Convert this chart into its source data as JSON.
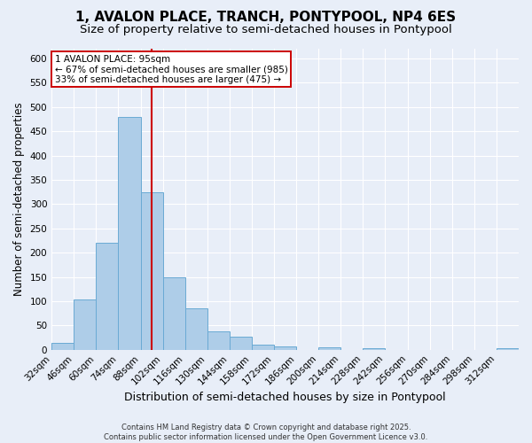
{
  "title1": "1, AVALON PLACE, TRANCH, PONTYPOOL, NP4 6ES",
  "title2": "Size of property relative to semi-detached houses in Pontypool",
  "xlabel": "Distribution of semi-detached houses by size in Pontypool",
  "ylabel": "Number of semi-detached properties",
  "footnote1": "Contains HM Land Registry data © Crown copyright and database right 2025.",
  "footnote2": "Contains public sector information licensed under the Open Government Licence v3.0.",
  "bin_labels": [
    "32sqm",
    "46sqm",
    "60sqm",
    "74sqm",
    "88sqm",
    "102sqm",
    "116sqm",
    "130sqm",
    "144sqm",
    "158sqm",
    "172sqm",
    "186sqm",
    "200sqm",
    "214sqm",
    "228sqm",
    "242sqm",
    "256sqm",
    "270sqm",
    "284sqm",
    "298sqm",
    "312sqm"
  ],
  "bin_edges": [
    32,
    46,
    60,
    74,
    88,
    102,
    116,
    130,
    144,
    158,
    172,
    186,
    200,
    214,
    228,
    242,
    256,
    270,
    284,
    298,
    312
  ],
  "bar_heights": [
    15,
    104,
    221,
    480,
    325,
    150,
    85,
    38,
    26,
    11,
    6,
    0,
    5,
    0,
    4,
    0,
    0,
    0,
    0,
    0,
    4
  ],
  "bar_color": "#aecde8",
  "bar_edge_color": "#6aaad4",
  "property_size": 95,
  "property_line_color": "#cc0000",
  "annotation_line1": "1 AVALON PLACE: 95sqm",
  "annotation_line2": "← 67% of semi-detached houses are smaller (985)",
  "annotation_line3": "33% of semi-detached houses are larger (475) →",
  "annotation_box_color": "#ffffff",
  "annotation_border_color": "#cc0000",
  "ylim": [
    0,
    620
  ],
  "yticks": [
    0,
    50,
    100,
    150,
    200,
    250,
    300,
    350,
    400,
    450,
    500,
    550,
    600
  ],
  "background_color": "#e8eef8",
  "grid_color": "#ffffff",
  "title1_fontsize": 11,
  "title2_fontsize": 9.5,
  "xlabel_fontsize": 9,
  "ylabel_fontsize": 8.5,
  "tick_fontsize": 7.5,
  "footnote_fontsize": 6,
  "annotation_fontsize": 7.5
}
